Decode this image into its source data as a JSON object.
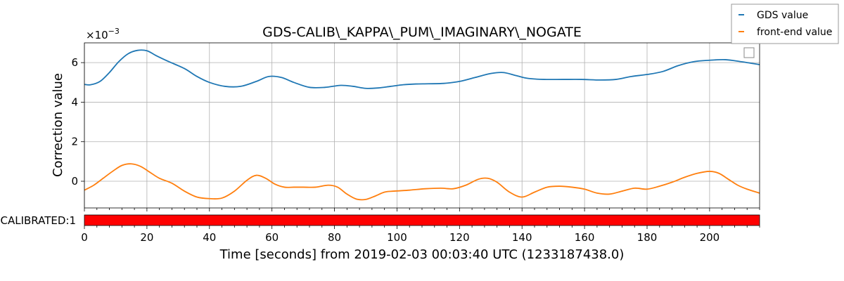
{
  "chart_data": {
    "type": "line",
    "title": "GDS-CALIB\\_KAPPA\\_PUM\\_IMAGINARY\\_NOGATE",
    "ylabel": "Correction value",
    "xlabel": "Time [seconds] from 2019-02-03 00:03:40 UTC (1233187438.0)",
    "y_scale_label": "×10",
    "y_scale_exponent": "−3",
    "xlim": [
      0,
      216
    ],
    "ylim": [
      -1.35,
      7.0
    ],
    "x_ticks": [
      0,
      20,
      40,
      60,
      80,
      100,
      120,
      140,
      160,
      180,
      200
    ],
    "x_tick_labels": [
      "0",
      "20",
      "40",
      "60",
      "80",
      "100",
      "120",
      "140",
      "160",
      "180",
      "200"
    ],
    "y_ticks": [
      0,
      2,
      4,
      6
    ],
    "y_tick_labels": [
      "0",
      "2",
      "4",
      "6"
    ],
    "grid": true,
    "legend_placement": "top-right outside",
    "series": [
      {
        "name": "GDS value",
        "color": "#1f77b4",
        "x": [
          0,
          2,
          5,
          8,
          11,
          14,
          17,
          20,
          23,
          27,
          32,
          36,
          40,
          45,
          50,
          55,
          59,
          63,
          67,
          72,
          77,
          82,
          86,
          90,
          94,
          98,
          102,
          106,
          110,
          115,
          120,
          125,
          130,
          134,
          138,
          142,
          147,
          153,
          159,
          165,
          170,
          175,
          180,
          185,
          190,
          195,
          200,
          205,
          210,
          216
        ],
        "y": [
          4.9,
          4.88,
          5.05,
          5.5,
          6.05,
          6.45,
          6.62,
          6.6,
          6.35,
          6.05,
          5.7,
          5.3,
          5.0,
          4.8,
          4.8,
          5.05,
          5.3,
          5.25,
          5.0,
          4.75,
          4.75,
          4.85,
          4.8,
          4.7,
          4.72,
          4.8,
          4.88,
          4.92,
          4.93,
          4.95,
          5.05,
          5.25,
          5.45,
          5.5,
          5.35,
          5.2,
          5.15,
          5.15,
          5.15,
          5.12,
          5.15,
          5.3,
          5.4,
          5.55,
          5.85,
          6.05,
          6.12,
          6.15,
          6.05,
          5.9
        ]
      },
      {
        "name": "front-end value",
        "color": "#ff7f0e",
        "x": [
          0,
          3,
          6,
          9,
          12,
          15,
          18,
          21,
          24,
          28,
          32,
          36,
          40,
          44,
          48,
          52,
          55,
          58,
          61,
          64,
          67,
          70,
          74,
          78,
          81,
          84,
          87,
          90,
          93,
          96,
          99,
          104,
          109,
          114,
          118,
          122,
          126,
          129,
          132,
          136,
          140,
          144,
          148,
          152,
          156,
          160,
          164,
          168,
          172,
          176,
          180,
          184,
          188,
          192,
          196,
          200,
          203,
          206,
          209,
          212,
          216
        ],
        "y": [
          -0.45,
          -0.2,
          0.15,
          0.5,
          0.8,
          0.88,
          0.75,
          0.45,
          0.15,
          -0.1,
          -0.5,
          -0.8,
          -0.88,
          -0.85,
          -0.5,
          0.05,
          0.3,
          0.15,
          -0.15,
          -0.3,
          -0.3,
          -0.3,
          -0.3,
          -0.2,
          -0.3,
          -0.65,
          -0.9,
          -0.92,
          -0.75,
          -0.55,
          -0.5,
          -0.45,
          -0.38,
          -0.35,
          -0.38,
          -0.2,
          0.1,
          0.15,
          -0.05,
          -0.55,
          -0.8,
          -0.55,
          -0.3,
          -0.25,
          -0.3,
          -0.4,
          -0.6,
          -0.65,
          -0.5,
          -0.35,
          -0.4,
          -0.25,
          -0.05,
          0.2,
          0.4,
          0.5,
          0.4,
          0.1,
          -0.2,
          -0.4,
          -0.6
        ]
      }
    ],
    "state_bar": {
      "label": "CALIBRATED:1",
      "color": "#ff0000"
    }
  }
}
